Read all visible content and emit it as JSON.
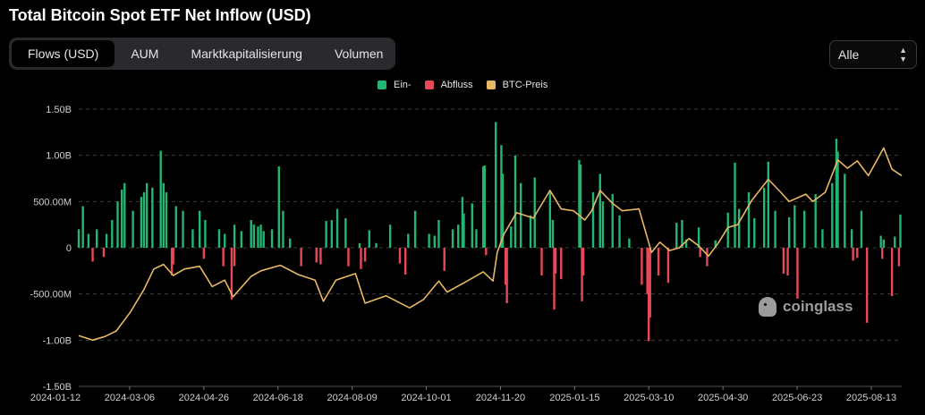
{
  "title": "Total Bitcoin Spot ETF Net Inflow (USD)",
  "tabs": [
    {
      "label": "Flows (USD)",
      "active": true
    },
    {
      "label": "AUM",
      "active": false
    },
    {
      "label": "Marktkapitalisierung",
      "active": false
    },
    {
      "label": "Volumen",
      "active": false
    }
  ],
  "range_select": {
    "value": "Alle"
  },
  "watermark": "coinglass",
  "colors": {
    "inflow": "#22b573",
    "outflow": "#e84858",
    "price": "#e8b864",
    "grid": "#3a3a3a"
  },
  "legend": [
    {
      "label": "Ein-",
      "color": "#22b573"
    },
    {
      "label": "Abfluss",
      "color": "#e84858"
    },
    {
      "label": "BTC-Preis",
      "color": "#e8b864"
    }
  ],
  "chart_data": {
    "type": "bar",
    "title": "Total Bitcoin Spot ETF Net Inflow (USD)",
    "y_ticks": [
      "1.50B",
      "1.00B",
      "500.00M",
      "0",
      "-500.00M",
      "-1.00B",
      "-1.50B"
    ],
    "ylim": [
      -1500000000,
      1500000000
    ],
    "x_ticks": [
      "2024-01-12",
      "2024-03-06",
      "2024-04-26",
      "2024-06-18",
      "2024-08-09",
      "2024-10-01",
      "2024-11-20",
      "2025-01-15",
      "2025-03-10",
      "2025-04-30",
      "2025-06-23",
      "2025-08-13"
    ],
    "x_range": [
      "2024-01-12",
      "2025-08-26"
    ],
    "grid": true,
    "legend_position": "top-center",
    "series": [
      {
        "name": "Ein-",
        "kind": "bar",
        "values_millions": [
          [
            "2024-01-12",
            200
          ],
          [
            "2024-01-15",
            450
          ],
          [
            "2024-01-19",
            150
          ],
          [
            "2024-01-25",
            200
          ],
          [
            "2024-02-01",
            150
          ],
          [
            "2024-02-05",
            300
          ],
          [
            "2024-02-09",
            500
          ],
          [
            "2024-02-12",
            630
          ],
          [
            "2024-02-14",
            700
          ],
          [
            "2024-02-20",
            400
          ],
          [
            "2024-02-26",
            550
          ],
          [
            "2024-02-28",
            600
          ],
          [
            "2024-03-01",
            700
          ],
          [
            "2024-03-05",
            650
          ],
          [
            "2024-03-11",
            1050
          ],
          [
            "2024-03-13",
            700
          ],
          [
            "2024-03-15",
            600
          ],
          [
            "2024-03-22",
            450
          ],
          [
            "2024-03-27",
            400
          ],
          [
            "2024-04-03",
            200
          ],
          [
            "2024-04-08",
            400
          ],
          [
            "2024-04-12",
            300
          ],
          [
            "2024-04-22",
            200
          ],
          [
            "2024-04-26",
            150
          ],
          [
            "2024-05-03",
            250
          ],
          [
            "2024-05-08",
            180
          ],
          [
            "2024-05-15",
            300
          ],
          [
            "2024-05-17",
            250
          ],
          [
            "2024-05-20",
            230
          ],
          [
            "2024-05-22",
            250
          ],
          [
            "2024-05-24",
            180
          ],
          [
            "2024-05-30",
            200
          ],
          [
            "2024-06-04",
            880
          ],
          [
            "2024-06-07",
            400
          ],
          [
            "2024-06-12",
            100
          ],
          [
            "2024-07-08",
            290
          ],
          [
            "2024-07-12",
            300
          ],
          [
            "2024-07-16",
            420
          ],
          [
            "2024-07-22",
            320
          ],
          [
            "2024-08-01",
            50
          ],
          [
            "2024-08-08",
            190
          ],
          [
            "2024-08-13",
            50
          ],
          [
            "2024-08-23",
            250
          ],
          [
            "2024-09-05",
            150
          ],
          [
            "2024-09-10",
            400
          ],
          [
            "2024-09-20",
            150
          ],
          [
            "2024-09-24",
            130
          ],
          [
            "2024-09-27",
            300
          ],
          [
            "2024-10-07",
            200
          ],
          [
            "2024-10-11",
            250
          ],
          [
            "2024-10-14",
            550
          ],
          [
            "2024-10-15",
            370
          ],
          [
            "2024-10-21",
            480
          ],
          [
            "2024-10-24",
            200
          ],
          [
            "2024-10-29",
            880
          ],
          [
            "2024-10-30",
            890
          ],
          [
            "2024-11-07",
            1360
          ],
          [
            "2024-11-11",
            1110
          ],
          [
            "2024-11-12",
            800
          ],
          [
            "2024-11-18",
            230
          ],
          [
            "2024-11-21",
            1000
          ],
          [
            "2024-11-25",
            700
          ],
          [
            "2024-12-02",
            350
          ],
          [
            "2024-12-05",
            760
          ],
          [
            "2024-12-16",
            600
          ],
          [
            "2024-12-18",
            300
          ],
          [
            "2025-01-06",
            950
          ],
          [
            "2025-01-07",
            900
          ],
          [
            "2025-01-16",
            600
          ],
          [
            "2025-01-21",
            800
          ],
          [
            "2025-01-23",
            500
          ],
          [
            "2025-01-30",
            580
          ],
          [
            "2025-02-04",
            350
          ],
          [
            "2025-02-11",
            100
          ],
          [
            "2025-03-17",
            270
          ],
          [
            "2025-03-21",
            300
          ],
          [
            "2025-03-24",
            90
          ],
          [
            "2025-04-02",
            220
          ],
          [
            "2025-04-14",
            80
          ],
          [
            "2025-04-23",
            380
          ],
          [
            "2025-04-28",
            920
          ],
          [
            "2025-05-01",
            420
          ],
          [
            "2025-05-08",
            600
          ],
          [
            "2025-05-12",
            320
          ],
          [
            "2025-05-19",
            650
          ],
          [
            "2025-05-22",
            930
          ],
          [
            "2025-05-27",
            400
          ],
          [
            "2025-06-06",
            330
          ],
          [
            "2025-06-10",
            460
          ],
          [
            "2025-06-17",
            400
          ],
          [
            "2025-06-25",
            580
          ],
          [
            "2025-06-30",
            200
          ],
          [
            "2025-07-07",
            700
          ],
          [
            "2025-07-10",
            1180
          ],
          [
            "2025-07-11",
            1040
          ],
          [
            "2025-07-16",
            800
          ],
          [
            "2025-07-21",
            200
          ],
          [
            "2025-07-28",
            400
          ],
          [
            "2025-08-11",
            130
          ],
          [
            "2025-08-13",
            90
          ],
          [
            "2025-08-21",
            120
          ],
          [
            "2025-08-25",
            360
          ]
        ]
      },
      {
        "name": "Abfluss",
        "kind": "bar",
        "values_millions": [
          [
            "2024-01-22",
            -150
          ],
          [
            "2024-01-30",
            -100
          ],
          [
            "2024-03-19",
            -300
          ],
          [
            "2024-03-20",
            -180
          ],
          [
            "2024-04-11",
            -120
          ],
          [
            "2024-04-25",
            -200
          ],
          [
            "2024-05-01",
            -560
          ],
          [
            "2024-05-03",
            -200
          ],
          [
            "2024-06-20",
            -200
          ],
          [
            "2024-07-01",
            -160
          ],
          [
            "2024-07-04",
            -180
          ],
          [
            "2024-07-24",
            -200
          ],
          [
            "2024-08-02",
            -230
          ],
          [
            "2024-08-05",
            -150
          ],
          [
            "2024-08-30",
            -170
          ],
          [
            "2024-09-03",
            -290
          ],
          [
            "2024-10-01",
            -250
          ],
          [
            "2024-10-31",
            -80
          ],
          [
            "2024-11-14",
            -400
          ],
          [
            "2024-11-15",
            -600
          ],
          [
            "2024-12-10",
            -300
          ],
          [
            "2024-12-19",
            -670
          ],
          [
            "2024-12-20",
            -280
          ],
          [
            "2024-12-24",
            -340
          ],
          [
            "2025-01-08",
            -580
          ],
          [
            "2025-01-09",
            -300
          ],
          [
            "2025-02-20",
            -400
          ],
          [
            "2025-02-24",
            -500
          ],
          [
            "2025-02-25",
            -1010
          ],
          [
            "2025-02-26",
            -754
          ],
          [
            "2025-03-04",
            -300
          ],
          [
            "2025-03-11",
            -380
          ],
          [
            "2025-04-03",
            -100
          ],
          [
            "2025-04-08",
            -200
          ],
          [
            "2025-06-02",
            -280
          ],
          [
            "2025-06-05",
            -300
          ],
          [
            "2025-06-12",
            -550
          ],
          [
            "2025-07-22",
            -140
          ],
          [
            "2025-07-25",
            -110
          ],
          [
            "2025-08-01",
            -812
          ],
          [
            "2025-08-12",
            -120
          ],
          [
            "2025-08-19",
            -523
          ],
          [
            "2025-08-24",
            -200
          ]
        ]
      },
      {
        "name": "BTC-Preis",
        "kind": "line",
        "price_path_scaled_millions": [
          [
            "2024-01-12",
            -950
          ],
          [
            "2024-01-22",
            -1000
          ],
          [
            "2024-01-31",
            -960
          ],
          [
            "2024-02-08",
            -900
          ],
          [
            "2024-02-18",
            -700
          ],
          [
            "2024-02-28",
            -450
          ],
          [
            "2024-03-06",
            -230
          ],
          [
            "2024-03-13",
            -180
          ],
          [
            "2024-03-20",
            -300
          ],
          [
            "2024-03-28",
            -230
          ],
          [
            "2024-04-08",
            -200
          ],
          [
            "2024-04-17",
            -420
          ],
          [
            "2024-04-26",
            -350
          ],
          [
            "2024-05-02",
            -530
          ],
          [
            "2024-05-15",
            -310
          ],
          [
            "2024-05-22",
            -250
          ],
          [
            "2024-06-05",
            -190
          ],
          [
            "2024-06-18",
            -290
          ],
          [
            "2024-06-30",
            -350
          ],
          [
            "2024-07-06",
            -580
          ],
          [
            "2024-07-15",
            -350
          ],
          [
            "2024-07-29",
            -280
          ],
          [
            "2024-08-05",
            -600
          ],
          [
            "2024-08-20",
            -520
          ],
          [
            "2024-09-06",
            -650
          ],
          [
            "2024-09-16",
            -560
          ],
          [
            "2024-09-27",
            -360
          ],
          [
            "2024-10-03",
            -480
          ],
          [
            "2024-10-15",
            -380
          ],
          [
            "2024-10-29",
            -260
          ],
          [
            "2024-11-05",
            -360
          ],
          [
            "2024-11-08",
            -50
          ],
          [
            "2024-11-13",
            150
          ],
          [
            "2024-11-22",
            380
          ],
          [
            "2024-12-04",
            320
          ],
          [
            "2024-12-16",
            620
          ],
          [
            "2024-12-24",
            420
          ],
          [
            "2025-01-02",
            400
          ],
          [
            "2025-01-10",
            300
          ],
          [
            "2025-01-15",
            400
          ],
          [
            "2025-01-21",
            620
          ],
          [
            "2025-01-30",
            480
          ],
          [
            "2025-02-06",
            400
          ],
          [
            "2025-02-18",
            420
          ],
          [
            "2025-02-27",
            -50
          ],
          [
            "2025-03-05",
            60
          ],
          [
            "2025-03-12",
            -30
          ],
          [
            "2025-03-19",
            0
          ],
          [
            "2025-03-26",
            100
          ],
          [
            "2025-04-02",
            20
          ],
          [
            "2025-04-09",
            -90
          ],
          [
            "2025-04-16",
            50
          ],
          [
            "2025-04-23",
            220
          ],
          [
            "2025-04-30",
            250
          ],
          [
            "2025-05-10",
            510
          ],
          [
            "2025-05-22",
            740
          ],
          [
            "2025-05-31",
            600
          ],
          [
            "2025-06-06",
            500
          ],
          [
            "2025-06-18",
            580
          ],
          [
            "2025-06-23",
            500
          ],
          [
            "2025-07-02",
            600
          ],
          [
            "2025-07-11",
            950
          ],
          [
            "2025-07-18",
            860
          ],
          [
            "2025-07-25",
            940
          ],
          [
            "2025-08-02",
            780
          ],
          [
            "2025-08-13",
            1080
          ],
          [
            "2025-08-19",
            850
          ],
          [
            "2025-08-26",
            780
          ]
        ]
      }
    ]
  }
}
